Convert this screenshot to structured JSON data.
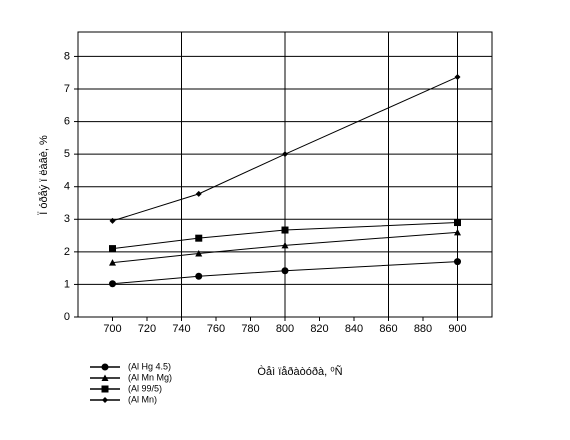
{
  "chart_data": {
    "type": "line",
    "x_label": "Òåì ïåðàòóðà, ⁰Ñ",
    "y_label": "Ï óðåý ï ëàâè, %",
    "x": [
      700,
      750,
      800,
      900
    ],
    "series": [
      {
        "name": "(Al Hg 4.5)",
        "color": "#000000",
        "marker": "circle",
        "values": [
          1.02,
          1.25,
          1.42,
          1.7
        ]
      },
      {
        "name": "(Al Mn Mg)",
        "color": "#000000",
        "marker": "triangle",
        "values": [
          1.67,
          1.95,
          2.2,
          2.6
        ]
      },
      {
        "name": "(Al 99/5)",
        "color": "#000000",
        "marker": "square",
        "values": [
          2.1,
          2.42,
          2.67,
          2.9
        ]
      },
      {
        "name": "(Al Mn)",
        "color": "#000000",
        "marker": "diamond",
        "values": [
          2.95,
          3.78,
          5.0,
          7.37
        ]
      }
    ],
    "xlim": [
      680,
      920
    ],
    "xticks": [
      700,
      720,
      740,
      760,
      780,
      800,
      820,
      840,
      860,
      880,
      900
    ],
    "ylim": [
      0,
      8.75
    ],
    "yticks": [
      0,
      1,
      2,
      3,
      4,
      5,
      6,
      7,
      8
    ],
    "x_grid_lines": [
      740,
      800,
      860,
      900
    ],
    "grid": true,
    "legend": "bottom-left"
  }
}
